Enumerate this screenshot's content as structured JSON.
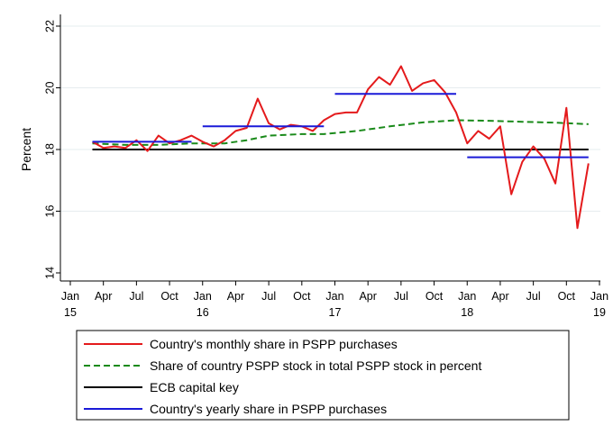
{
  "chart_data": {
    "type": "line",
    "ylabel": "Percent",
    "ylim": [
      14,
      22
    ],
    "y_ticks": [
      14,
      16,
      18,
      20,
      22
    ],
    "grid": "horizontal",
    "x_ticks": [
      {
        "date": "2015-01",
        "lines": [
          "Jan",
          "15"
        ]
      },
      {
        "date": "2015-04",
        "lines": [
          "Apr"
        ]
      },
      {
        "date": "2015-07",
        "lines": [
          "Jul"
        ]
      },
      {
        "date": "2015-10",
        "lines": [
          "Oct"
        ]
      },
      {
        "date": "2016-01",
        "lines": [
          "Jan",
          "16"
        ]
      },
      {
        "date": "2016-04",
        "lines": [
          "Apr"
        ]
      },
      {
        "date": "2016-07",
        "lines": [
          "Jul"
        ]
      },
      {
        "date": "2016-10",
        "lines": [
          "Oct"
        ]
      },
      {
        "date": "2017-01",
        "lines": [
          "Jan",
          "17"
        ]
      },
      {
        "date": "2017-04",
        "lines": [
          "Apr"
        ]
      },
      {
        "date": "2017-07",
        "lines": [
          "Jul"
        ]
      },
      {
        "date": "2017-10",
        "lines": [
          "Oct"
        ]
      },
      {
        "date": "2018-01",
        "lines": [
          "Jan",
          "18"
        ]
      },
      {
        "date": "2018-04",
        "lines": [
          "Apr"
        ]
      },
      {
        "date": "2018-07",
        "lines": [
          "Jul"
        ]
      },
      {
        "date": "2018-10",
        "lines": [
          "Oct"
        ]
      },
      {
        "date": "2019-01",
        "lines": [
          "Jan",
          "19"
        ]
      }
    ],
    "legend_position": "bottom",
    "series": [
      {
        "name": "Country's monthly share in PSPP purchases",
        "color": "#e41a1c",
        "style": "solid",
        "points": [
          [
            "2015-03",
            18.25
          ],
          [
            "2015-04",
            18.05
          ],
          [
            "2015-05",
            18.1
          ],
          [
            "2015-06",
            18.05
          ],
          [
            "2015-07",
            18.3
          ],
          [
            "2015-08",
            17.95
          ],
          [
            "2015-09",
            18.45
          ],
          [
            "2015-10",
            18.2
          ],
          [
            "2015-11",
            18.3
          ],
          [
            "2015-12",
            18.45
          ],
          [
            "2016-01",
            18.25
          ],
          [
            "2016-02",
            18.1
          ],
          [
            "2016-03",
            18.3
          ],
          [
            "2016-04",
            18.6
          ],
          [
            "2016-05",
            18.7
          ],
          [
            "2016-06",
            19.65
          ],
          [
            "2016-07",
            18.85
          ],
          [
            "2016-08",
            18.65
          ],
          [
            "2016-09",
            18.8
          ],
          [
            "2016-10",
            18.75
          ],
          [
            "2016-11",
            18.6
          ],
          [
            "2016-12",
            18.95
          ],
          [
            "2017-01",
            19.15
          ],
          [
            "2017-02",
            19.2
          ],
          [
            "2017-03",
            19.2
          ],
          [
            "2017-04",
            19.95
          ],
          [
            "2017-05",
            20.35
          ],
          [
            "2017-06",
            20.1
          ],
          [
            "2017-07",
            20.7
          ],
          [
            "2017-08",
            19.9
          ],
          [
            "2017-09",
            20.15
          ],
          [
            "2017-10",
            20.25
          ],
          [
            "2017-11",
            19.85
          ],
          [
            "2017-12",
            19.2
          ],
          [
            "2018-01",
            18.2
          ],
          [
            "2018-02",
            18.6
          ],
          [
            "2018-03",
            18.35
          ],
          [
            "2018-04",
            18.75
          ],
          [
            "2018-05",
            16.55
          ],
          [
            "2018-06",
            17.6
          ],
          [
            "2018-07",
            18.1
          ],
          [
            "2018-08",
            17.7
          ],
          [
            "2018-09",
            16.9
          ],
          [
            "2018-10",
            19.35
          ],
          [
            "2018-11",
            15.45
          ],
          [
            "2018-12",
            17.55
          ]
        ]
      },
      {
        "name": "Share of country PSPP stock in total PSPP stock in percent",
        "color": "#1a8a1a",
        "style": "dashed",
        "points": [
          [
            "2015-03",
            18.2
          ],
          [
            "2015-06",
            18.15
          ],
          [
            "2015-09",
            18.15
          ],
          [
            "2015-12",
            18.2
          ],
          [
            "2016-03",
            18.2
          ],
          [
            "2016-05",
            18.3
          ],
          [
            "2016-07",
            18.45
          ],
          [
            "2016-10",
            18.5
          ],
          [
            "2016-12",
            18.5
          ],
          [
            "2017-03",
            18.6
          ],
          [
            "2017-06",
            18.75
          ],
          [
            "2017-09",
            18.88
          ],
          [
            "2017-12",
            18.95
          ],
          [
            "2018-03",
            18.93
          ],
          [
            "2018-06",
            18.9
          ],
          [
            "2018-09",
            18.87
          ],
          [
            "2018-12",
            18.82
          ]
        ]
      },
      {
        "name": "ECB capital key",
        "color": "#000000",
        "style": "solid",
        "points": [
          [
            "2015-03",
            18.0
          ],
          [
            "2018-12",
            18.0
          ]
        ]
      },
      {
        "name": "Country's yearly share in PSPP purchases",
        "color": "#1a1ad8",
        "style": "solid",
        "segments": [
          [
            [
              "2015-03",
              18.25
            ],
            [
              "2015-12",
              18.25
            ]
          ],
          [
            [
              "2016-01",
              18.75
            ],
            [
              "2016-12",
              18.75
            ]
          ],
          [
            [
              "2017-01",
              19.8
            ],
            [
              "2017-12",
              19.8
            ]
          ],
          [
            [
              "2018-01",
              17.75
            ],
            [
              "2018-12",
              17.75
            ]
          ]
        ]
      }
    ]
  }
}
